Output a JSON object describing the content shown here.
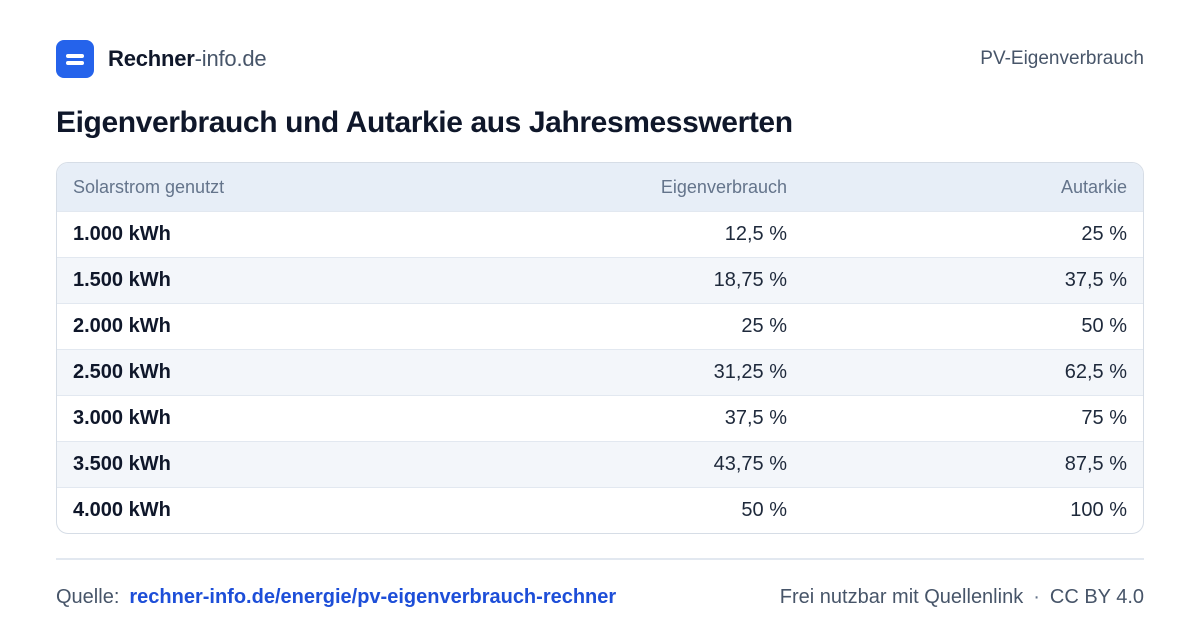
{
  "header": {
    "brand_strong": "Rechner",
    "brand_light": "-info.de",
    "page_label": "PV-Eigenverbrauch"
  },
  "title": "Eigenverbrauch und Autarkie aus Jahresmesswerten",
  "table": {
    "columns": [
      "Solarstrom genutzt",
      "Eigenverbrauch",
      "Autarkie"
    ],
    "rows": [
      [
        "1.000 kWh",
        "12,5 %",
        "25 %"
      ],
      [
        "1.500 kWh",
        "18,75 %",
        "37,5 %"
      ],
      [
        "2.000 kWh",
        "25 %",
        "50 %"
      ],
      [
        "2.500 kWh",
        "31,25 %",
        "62,5 %"
      ],
      [
        "3.000 kWh",
        "37,5 %",
        "75 %"
      ],
      [
        "3.500 kWh",
        "43,75 %",
        "87,5 %"
      ],
      [
        "4.000 kWh",
        "50 %",
        "100 %"
      ]
    ]
  },
  "footer": {
    "source_label": "Quelle:",
    "source_link": "rechner-info.de/energie/pv-eigenverbrauch-rechner",
    "license_text": "Frei nutzbar mit Quellenlink",
    "separator": "·",
    "license": "CC BY 4.0"
  },
  "colors": {
    "accent": "#2563eb",
    "link": "#1d4ed8",
    "header_row": "#e7eef7",
    "zebra_row": "#f3f6fa"
  },
  "icons": {
    "logo": "rechner-logo-icon"
  }
}
